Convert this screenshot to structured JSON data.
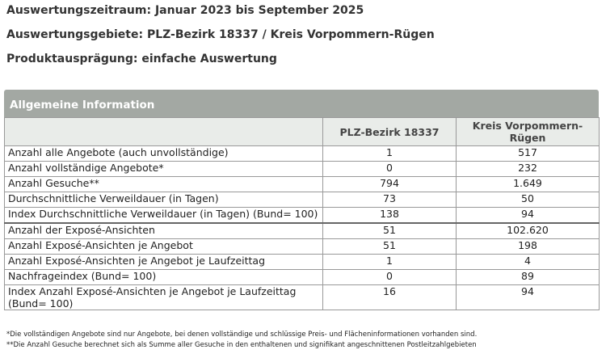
{
  "header": {
    "lines": [
      "Auswertungszeitraum: Januar 2023 bis September 2025",
      "Auswertungsgebiete: PLZ-Bezirk 18337 / Kreis Vorpommern-Rügen",
      "Produktausprägung: einfache Auswertung"
    ]
  },
  "table": {
    "title": "Allgemeine Information",
    "columns": [
      "PLZ-Bezirk 18337",
      "Kreis Vorpommern-Rügen"
    ],
    "rows": [
      [
        "Anzahl alle Angebote (auch unvollständige)",
        "1",
        "517"
      ],
      [
        "Anzahl vollständige Angebote*",
        "0",
        "232"
      ],
      [
        "Anzahl Gesuche**",
        "794",
        "1.649"
      ],
      [
        "Durchschnittliche Verweildauer (in Tagen)",
        "73",
        "50"
      ],
      [
        "Index Durchschnittliche Verweildauer (in Tagen) (Bund= 100)",
        "138",
        "94"
      ],
      [
        "Anzahl der Exposé-Ansichten",
        "51",
        "102.620"
      ],
      [
        "Anzahl Exposé-Ansichten je Angebot",
        "51",
        "198"
      ],
      [
        "Anzahl Exposé-Ansichten je Angebot je Laufzeittag",
        "1",
        "4"
      ],
      [
        "Nachfrageindex (Bund= 100)",
        "0",
        "89"
      ],
      [
        "Index Anzahl Exposé-Ansichten je Angebot je Laufzeittag (Bund= 100)",
        "16",
        "94"
      ]
    ]
  },
  "footnotes": [
    "*Die vollständigen Angebote sind nur Angebote, bei denen vollständige und schlüssige Preis- und Flächeninformationen vorhanden sind.",
    "**Die Anzahl Gesuche berechnet sich als Summe aller Gesuche in den enthaltenen und signifikant angeschnittenen Postleitzahlgebieten"
  ]
}
